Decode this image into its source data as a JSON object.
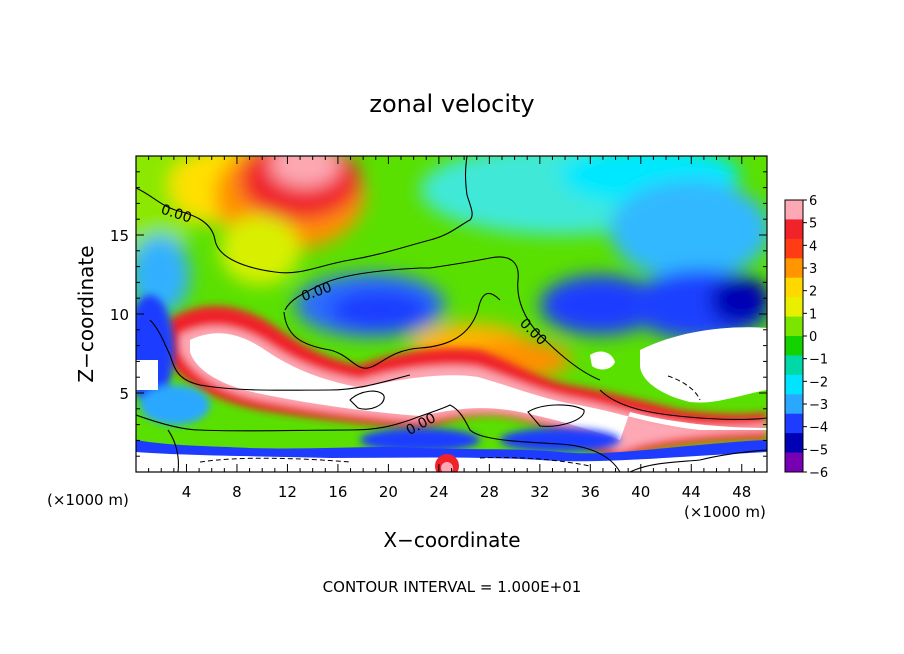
{
  "chart_data": {
    "type": "heatmap",
    "title": "zonal velocity",
    "xlabel": "X−coordinate",
    "ylabel": "Z−coordinate",
    "x_unit_left": "(×1000 m)",
    "x_unit_right": "(×1000 m)",
    "footer": "CONTOUR INTERVAL = 1.000E+01",
    "xlim": [
      0,
      50
    ],
    "ylim": [
      0,
      20
    ],
    "x_ticks": [
      4,
      8,
      12,
      16,
      20,
      24,
      28,
      32,
      36,
      40,
      44,
      48
    ],
    "y_ticks": [
      5,
      10,
      15
    ],
    "contour_labels": [
      "0.00",
      "0.00",
      "0.00",
      "0.00"
    ],
    "colorbar": {
      "levels": [
        6,
        5,
        4,
        3,
        2,
        1,
        0,
        -1,
        -2,
        -3,
        -4,
        -5,
        -6
      ],
      "colors": [
        "#fda8b4",
        "#f0222a",
        "#ff3c14",
        "#ff9600",
        "#ffd800",
        "#e8f000",
        "#7ae600",
        "#14d200",
        "#00d8a8",
        "#00e4ff",
        "#2aa8ff",
        "#1e3cff",
        "#0000b4",
        "#7800b4"
      ]
    }
  }
}
